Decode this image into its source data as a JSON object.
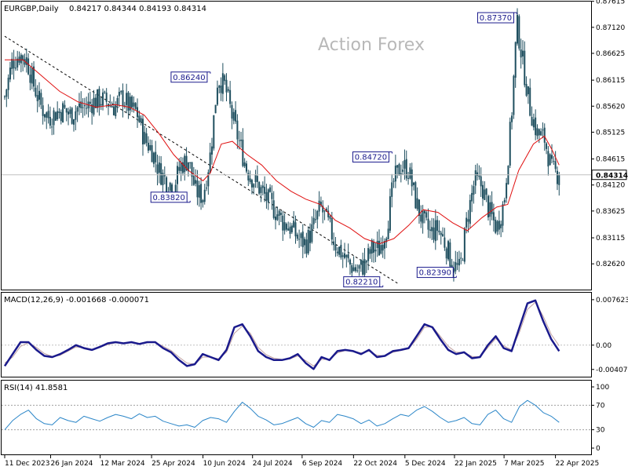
{
  "header": {
    "symbol": "EURGBP,Daily",
    "ohlc": "0.84217 0.84344 0.84193 0.84314"
  },
  "watermark": "Action Forex",
  "colors": {
    "candle": "#1f4f5f",
    "ma": "#e01010",
    "macd": "#1a1a8c",
    "signal": "#c0a0a0",
    "rsi": "#2b86c8",
    "trendline": "#000000",
    "label_border": "#1a1a8c"
  },
  "chart_data": [
    {
      "type": "candlestick",
      "name": "price",
      "ylim": [
        0.8213,
        0.8761
      ],
      "y_ticks": [
        "0.87615",
        "0.87120",
        "0.86625",
        "0.86115",
        "0.85620",
        "0.85125",
        "0.84615",
        "0.84120",
        "0.83625",
        "0.83115",
        "0.82620"
      ],
      "current_price": "0.84314",
      "x_ticks": [
        "11 Dec 2023",
        "26 Jan 2024",
        "12 Mar 2024",
        "25 Apr 2024",
        "10 Jun 2024",
        "24 Jul 2024",
        "6 Sep 2024",
        "22 Oct 2024",
        "5 Dec 2024",
        "22 Jan 2025",
        "7 Mar 2025",
        "22 Apr 2025"
      ],
      "annotations": [
        {
          "label": "0.86240",
          "value": 0.8624
        },
        {
          "label": "0.83820",
          "value": 0.8382
        },
        {
          "label": "0.84720",
          "value": 0.8472
        },
        {
          "label": "0.82210",
          "value": 0.8221
        },
        {
          "label": "0.82390",
          "value": 0.8239
        },
        {
          "label": "0.87370",
          "value": 0.8737
        }
      ],
      "close_path": [
        [
          0,
          0.858
        ],
        [
          4,
          0.8645
        ],
        [
          8,
          0.866
        ],
        [
          12,
          0.865
        ],
        [
          16,
          0.86
        ],
        [
          20,
          0.856
        ],
        [
          24,
          0.854
        ],
        [
          28,
          0.855
        ],
        [
          32,
          0.8555
        ],
        [
          36,
          0.8545
        ],
        [
          40,
          0.856
        ],
        [
          44,
          0.856
        ],
        [
          48,
          0.857
        ],
        [
          52,
          0.8575
        ],
        [
          56,
          0.857
        ],
        [
          60,
          0.856
        ],
        [
          64,
          0.858
        ],
        [
          68,
          0.856
        ],
        [
          72,
          0.855
        ],
        [
          76,
          0.85
        ],
        [
          80,
          0.848
        ],
        [
          84,
          0.844
        ],
        [
          88,
          0.842
        ],
        [
          92,
          0.841
        ],
        [
          96,
          0.845
        ],
        [
          100,
          0.846
        ],
        [
          104,
          0.84
        ],
        [
          108,
          0.839
        ],
        [
          112,
          0.847
        ],
        [
          116,
          0.8615
        ],
        [
          120,
          0.86
        ],
        [
          124,
          0.854
        ],
        [
          128,
          0.849
        ],
        [
          132,
          0.844
        ],
        [
          136,
          0.842
        ],
        [
          140,
          0.84
        ],
        [
          144,
          0.838
        ],
        [
          148,
          0.836
        ],
        [
          152,
          0.834
        ],
        [
          156,
          0.833
        ],
        [
          160,
          0.831
        ],
        [
          164,
          0.83
        ],
        [
          168,
          0.833
        ],
        [
          172,
          0.837
        ],
        [
          176,
          0.834
        ],
        [
          180,
          0.83
        ],
        [
          184,
          0.828
        ],
        [
          188,
          0.826
        ],
        [
          192,
          0.825
        ],
        [
          196,
          0.826
        ],
        [
          200,
          0.829
        ],
        [
          204,
          0.829
        ],
        [
          208,
          0.833
        ],
        [
          212,
          0.842
        ],
        [
          216,
          0.845
        ],
        [
          220,
          0.844
        ],
        [
          224,
          0.838
        ],
        [
          228,
          0.834
        ],
        [
          232,
          0.832
        ],
        [
          236,
          0.833
        ],
        [
          240,
          0.83
        ],
        [
          244,
          0.826
        ],
        [
          248,
          0.825
        ],
        [
          252,
          0.835
        ],
        [
          256,
          0.842
        ],
        [
          260,
          0.841
        ],
        [
          264,
          0.836
        ],
        [
          268,
          0.833
        ],
        [
          272,
          0.838
        ],
        [
          276,
          0.854
        ],
        [
          279,
          0.872
        ],
        [
          282,
          0.865
        ],
        [
          286,
          0.856
        ],
        [
          290,
          0.851
        ],
        [
          294,
          0.85
        ],
        [
          298,
          0.844
        ],
        [
          302,
          0.8431
        ]
      ],
      "ma_path": [
        [
          0,
          0.865
        ],
        [
          10,
          0.865
        ],
        [
          20,
          0.862
        ],
        [
          30,
          0.859
        ],
        [
          40,
          0.857
        ],
        [
          50,
          0.856
        ],
        [
          60,
          0.8565
        ],
        [
          68,
          0.856
        ],
        [
          76,
          0.8545
        ],
        [
          84,
          0.851
        ],
        [
          92,
          0.847
        ],
        [
          100,
          0.844
        ],
        [
          108,
          0.842
        ],
        [
          112,
          0.8435
        ],
        [
          118,
          0.849
        ],
        [
          124,
          0.8495
        ],
        [
          132,
          0.847
        ],
        [
          140,
          0.845
        ],
        [
          148,
          0.842
        ],
        [
          156,
          0.84
        ],
        [
          164,
          0.8385
        ],
        [
          172,
          0.8375
        ],
        [
          180,
          0.8345
        ],
        [
          188,
          0.833
        ],
        [
          196,
          0.831
        ],
        [
          204,
          0.83
        ],
        [
          212,
          0.831
        ],
        [
          220,
          0.8335
        ],
        [
          228,
          0.8365
        ],
        [
          236,
          0.836
        ],
        [
          244,
          0.834
        ],
        [
          252,
          0.8325
        ],
        [
          260,
          0.835
        ],
        [
          268,
          0.837
        ],
        [
          274,
          0.8375
        ],
        [
          280,
          0.844
        ],
        [
          288,
          0.849
        ],
        [
          294,
          0.8505
        ],
        [
          298,
          0.848
        ],
        [
          302,
          0.845
        ]
      ],
      "trendline": [
        [
          0,
          0.8695
        ],
        [
          214,
          0.8225
        ]
      ]
    },
    {
      "type": "line",
      "name": "MACD",
      "label": "MACD(12,26,9) -0.001668 -0.000071",
      "ylim": [
        -0.0045,
        0.008
      ],
      "y_ticks": [
        "0.007623",
        "0.00",
        "-0.004073"
      ],
      "zero_line": 0,
      "series": [
        {
          "name": "MACD",
          "values": [
            -0.0035,
            -0.0015,
            0.0005,
            0.0005,
            -0.0008,
            -0.0018,
            -0.002,
            -0.0015,
            -0.0008,
            0.0,
            -0.0005,
            -0.0008,
            -0.0003,
            0.0003,
            0.0005,
            0.0003,
            0.0005,
            0.0002,
            0.0005,
            0.0005,
            -0.0005,
            -0.0012,
            -0.0025,
            -0.0035,
            -0.0032,
            -0.0015,
            -0.002,
            -0.0025,
            -0.0008,
            0.003,
            0.0035,
            0.0015,
            -0.001,
            -0.002,
            -0.0025,
            -0.0025,
            -0.0022,
            -0.0015,
            -0.003,
            -0.004,
            -0.002,
            -0.0025,
            -0.001,
            -0.0008,
            -0.001,
            -0.0015,
            -0.0008,
            -0.002,
            -0.0018,
            -0.001,
            -0.0008,
            -0.0005,
            0.0015,
            0.0035,
            0.003,
            0.001,
            -0.0008,
            -0.0015,
            -0.0012,
            -0.0022,
            -0.002,
            0.0,
            0.0015,
            -0.0005,
            -0.001,
            0.003,
            0.007,
            0.0075,
            0.004,
            0.001,
            -0.001
          ]
        },
        {
          "name": "Signal",
          "values": [
            -0.003,
            -0.002,
            -0.0002,
            0.0004,
            -0.0004,
            -0.0014,
            -0.0019,
            -0.0017,
            -0.001,
            -0.0003,
            -0.0004,
            -0.0007,
            -0.0004,
            0.0001,
            0.0004,
            0.0003,
            0.0004,
            0.0003,
            0.0004,
            0.0005,
            -0.0002,
            -0.0009,
            -0.002,
            -0.003,
            -0.0032,
            -0.002,
            -0.002,
            -0.0023,
            -0.0012,
            0.002,
            0.0032,
            0.002,
            -0.0004,
            -0.0016,
            -0.0022,
            -0.0024,
            -0.0023,
            -0.0018,
            -0.0026,
            -0.0035,
            -0.0024,
            -0.0024,
            -0.0013,
            -0.0009,
            -0.001,
            -0.0013,
            -0.001,
            -0.0017,
            -0.0018,
            -0.0012,
            -0.0009,
            -0.0006,
            0.001,
            0.003,
            0.0031,
            0.0015,
            -0.0002,
            -0.0012,
            -0.0012,
            -0.0019,
            -0.002,
            -0.0004,
            0.0011,
            -0.0001,
            -0.0008,
            0.0022,
            0.006,
            0.0072,
            0.0048,
            0.0018,
            -0.0001
          ]
        }
      ]
    },
    {
      "type": "line",
      "name": "RSI",
      "label": "RSI(14) 41.8581",
      "ylim": [
        0,
        100
      ],
      "y_ticks": [
        "100",
        "70",
        "30",
        "0"
      ],
      "levels": [
        70,
        30
      ],
      "series": [
        {
          "name": "RSI",
          "values": [
            30,
            45,
            55,
            62,
            48,
            40,
            38,
            50,
            45,
            42,
            52,
            48,
            44,
            50,
            55,
            52,
            48,
            56,
            50,
            52,
            44,
            40,
            36,
            38,
            34,
            45,
            50,
            48,
            42,
            60,
            75,
            65,
            52,
            46,
            38,
            40,
            45,
            50,
            40,
            34,
            45,
            42,
            55,
            52,
            48,
            40,
            46,
            36,
            40,
            48,
            55,
            52,
            62,
            68,
            60,
            50,
            42,
            45,
            50,
            40,
            38,
            55,
            62,
            48,
            42,
            68,
            78,
            70,
            58,
            52,
            42
          ]
        }
      ]
    }
  ]
}
